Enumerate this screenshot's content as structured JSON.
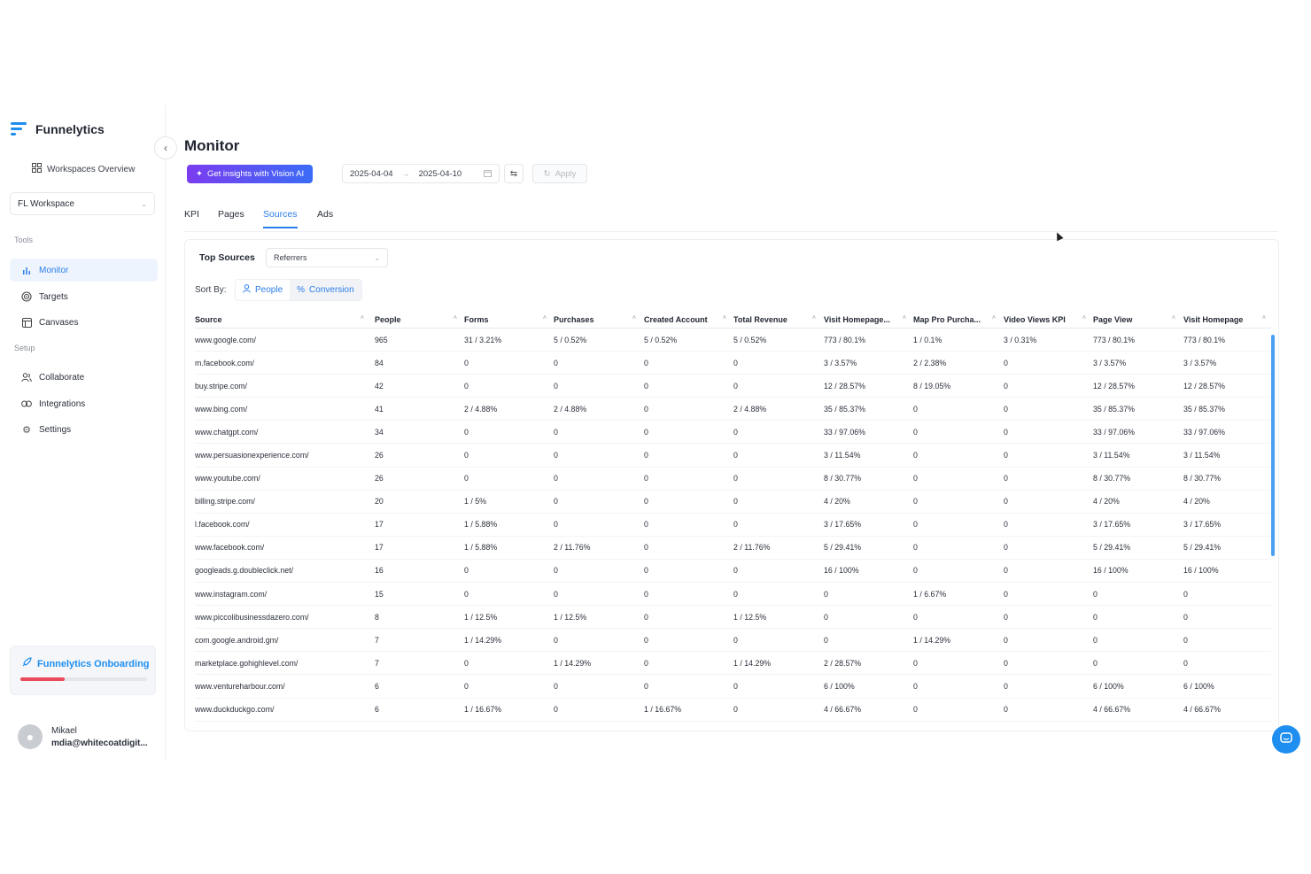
{
  "brand": {
    "name": "Funnelytics",
    "logo_icon": "funnel-logo-icon"
  },
  "sidebar": {
    "workspaces_overview": "Workspaces Overview",
    "workspace_select": "FL Workspace",
    "tools_label": "Tools",
    "setup_label": "Setup",
    "tools": [
      {
        "label": "Monitor",
        "icon": "bar-chart-icon",
        "active": true
      },
      {
        "label": "Targets",
        "icon": "target-icon",
        "active": false
      },
      {
        "label": "Canvases",
        "icon": "canvas-icon",
        "active": false
      }
    ],
    "setup": [
      {
        "label": "Collaborate",
        "icon": "users-icon"
      },
      {
        "label": "Integrations",
        "icon": "link-icon"
      },
      {
        "label": "Settings",
        "icon": "gear-icon"
      }
    ],
    "onboarding": {
      "label": "Funnelytics Onboarding",
      "progress": 0.35
    },
    "user": {
      "name": "Mikael",
      "email": "mdia@whitecoatdigit..."
    }
  },
  "header": {
    "title": "Monitor",
    "insights_button": "Get insights with Vision AI",
    "date_start": "2025-04-04",
    "date_end": "2025-04-10",
    "apply": "Apply"
  },
  "tabs": [
    {
      "label": "KPI",
      "active": false
    },
    {
      "label": "Pages",
      "active": false
    },
    {
      "label": "Sources",
      "active": true
    },
    {
      "label": "Ads",
      "active": false
    }
  ],
  "panel": {
    "title": "Top Sources",
    "referrer_select": "Referrers",
    "sort_label": "Sort By:",
    "sort_options": [
      {
        "label": "People",
        "icon": "person-icon"
      },
      {
        "label": "Conversion",
        "icon": "percent-icon",
        "selected": true
      }
    ]
  },
  "table": {
    "columns": [
      "Source",
      "People",
      "Forms",
      "Purchases",
      "Created Account",
      "Total Revenue",
      "Visit Homepage...",
      "Map Pro Purcha...",
      "Video Views KPI",
      "Page View",
      "Visit Homepage"
    ],
    "rows": [
      [
        "www.google.com/",
        "965",
        "31 / 3.21%",
        "5 / 0.52%",
        "5 / 0.52%",
        "5 / 0.52%",
        "773 / 80.1%",
        "1 / 0.1%",
        "3 / 0.31%",
        "773 / 80.1%",
        "773 / 80.1%"
      ],
      [
        "m.facebook.com/",
        "84",
        "0",
        "0",
        "0",
        "0",
        "3 / 3.57%",
        "2 / 2.38%",
        "0",
        "3 / 3.57%",
        "3 / 3.57%"
      ],
      [
        "buy.stripe.com/",
        "42",
        "0",
        "0",
        "0",
        "0",
        "12 / 28.57%",
        "8 / 19.05%",
        "0",
        "12 / 28.57%",
        "12 / 28.57%"
      ],
      [
        "www.bing.com/",
        "41",
        "2 / 4.88%",
        "2 / 4.88%",
        "0",
        "2 / 4.88%",
        "35 / 85.37%",
        "0",
        "0",
        "35 / 85.37%",
        "35 / 85.37%"
      ],
      [
        "www.chatgpt.com/",
        "34",
        "0",
        "0",
        "0",
        "0",
        "33 / 97.06%",
        "0",
        "0",
        "33 / 97.06%",
        "33 / 97.06%"
      ],
      [
        "www.persuasionexperience.com/",
        "26",
        "0",
        "0",
        "0",
        "0",
        "3 / 11.54%",
        "0",
        "0",
        "3 / 11.54%",
        "3 / 11.54%"
      ],
      [
        "www.youtube.com/",
        "26",
        "0",
        "0",
        "0",
        "0",
        "8 / 30.77%",
        "0",
        "0",
        "8 / 30.77%",
        "8 / 30.77%"
      ],
      [
        "billing.stripe.com/",
        "20",
        "1 / 5%",
        "0",
        "0",
        "0",
        "4 / 20%",
        "0",
        "0",
        "4 / 20%",
        "4 / 20%"
      ],
      [
        "l.facebook.com/",
        "17",
        "1 / 5.88%",
        "0",
        "0",
        "0",
        "3 / 17.65%",
        "0",
        "0",
        "3 / 17.65%",
        "3 / 17.65%"
      ],
      [
        "www.facebook.com/",
        "17",
        "1 / 5.88%",
        "2 / 11.76%",
        "0",
        "2 / 11.76%",
        "5 / 29.41%",
        "0",
        "0",
        "5 / 29.41%",
        "5 / 29.41%"
      ],
      [
        "googleads.g.doubleclick.net/",
        "16",
        "0",
        "0",
        "0",
        "0",
        "16 / 100%",
        "0",
        "0",
        "16 / 100%",
        "16 / 100%"
      ],
      [
        "www.instagram.com/",
        "15",
        "0",
        "0",
        "0",
        "0",
        "0",
        "1 / 6.67%",
        "0",
        "0",
        "0"
      ],
      [
        "www.piccolibusinessdazero.com/",
        "8",
        "1 / 12.5%",
        "1 / 12.5%",
        "0",
        "1 / 12.5%",
        "0",
        "0",
        "0",
        "0",
        "0"
      ],
      [
        "com.google.android.gm/",
        "7",
        "1 / 14.29%",
        "0",
        "0",
        "0",
        "0",
        "1 / 14.29%",
        "0",
        "0",
        "0"
      ],
      [
        "marketplace.gohighlevel.com/",
        "7",
        "0",
        "1 / 14.29%",
        "0",
        "1 / 14.29%",
        "2 / 28.57%",
        "0",
        "0",
        "0",
        "0"
      ],
      [
        "www.ventureharbour.com/",
        "6",
        "0",
        "0",
        "0",
        "0",
        "6 / 100%",
        "0",
        "0",
        "6 / 100%",
        "6 / 100%"
      ],
      [
        "www.duckduckgo.com/",
        "6",
        "1 / 16.67%",
        "0",
        "1 / 16.67%",
        "0",
        "4 / 66.67%",
        "0",
        "0",
        "4 / 66.67%",
        "4 / 66.67%"
      ]
    ]
  },
  "colors": {
    "accent": "#2b7de9",
    "brand": "#1e8ef0",
    "progress": "#ea4a5a"
  }
}
